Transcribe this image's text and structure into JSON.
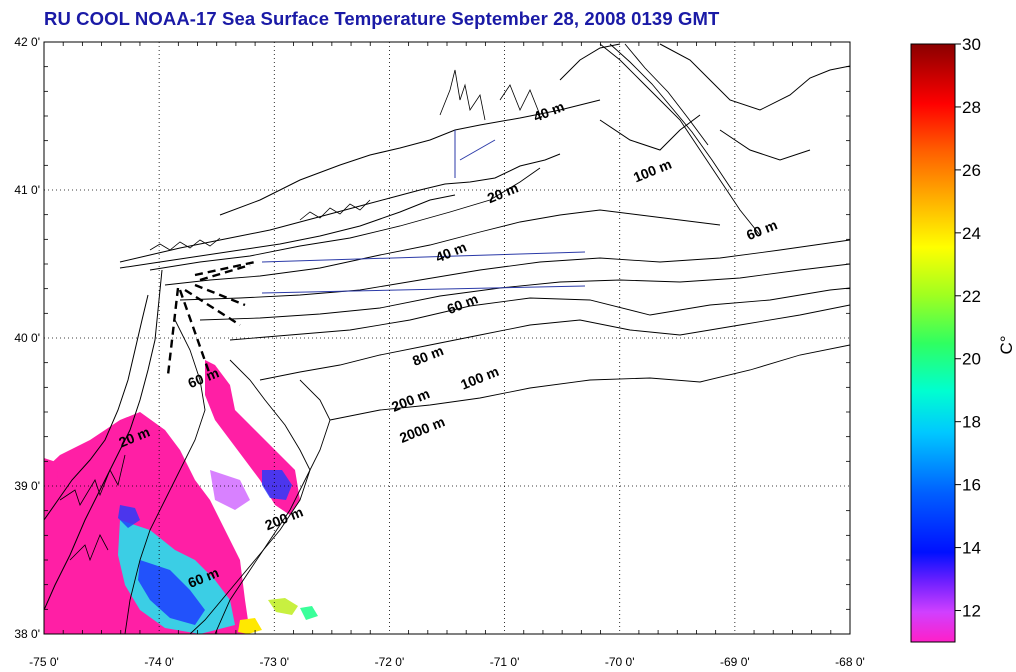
{
  "title": "RU COOL  NOAA-17 Sea Surface Temperature September 28, 2008 0139 GMT",
  "map": {
    "lon_range": [
      -75,
      -68
    ],
    "lat_range": [
      38,
      42
    ],
    "lon_ticks": [
      "-75 0'",
      "-74 0'",
      "-73 0'",
      "-72 0'",
      "-71 0'",
      "-70 0'",
      "-69 0'",
      "-68 0'"
    ],
    "lat_ticks": [
      "42 0'",
      "41 0'",
      "40 0'",
      "39 0'",
      "38 0'"
    ],
    "grid": "dotted"
  },
  "contour_labels": [
    {
      "text": "20 m",
      "lon": -71.0,
      "lat": 40.95
    },
    {
      "text": "40 m",
      "lon": -71.45,
      "lat": 40.55
    },
    {
      "text": "40 m",
      "lon": -70.6,
      "lat": 41.5
    },
    {
      "text": "100 m",
      "lon": -69.7,
      "lat": 41.1
    },
    {
      "text": "60 m",
      "lon": -71.35,
      "lat": 40.2
    },
    {
      "text": "60 m",
      "lon": -68.75,
      "lat": 40.7
    },
    {
      "text": "80 m",
      "lon": -71.65,
      "lat": 39.85
    },
    {
      "text": "100 m",
      "lon": -71.2,
      "lat": 39.7
    },
    {
      "text": "200 m",
      "lon": -71.8,
      "lat": 39.55
    },
    {
      "text": "60 m",
      "lon": -73.6,
      "lat": 39.7
    },
    {
      "text": "2000 m",
      "lon": -71.7,
      "lat": 39.35
    },
    {
      "text": "20 m",
      "lon": -74.2,
      "lat": 39.3
    },
    {
      "text": "200 m",
      "lon": -72.9,
      "lat": 38.75
    },
    {
      "text": "60 m",
      "lon": -73.6,
      "lat": 38.35
    }
  ],
  "colorbar": {
    "min": 11,
    "max": 30,
    "ticks": [
      "30",
      "28",
      "26",
      "24",
      "22",
      "20",
      "18",
      "16",
      "14",
      "12"
    ],
    "unit": "C°"
  },
  "colors": {
    "title": "#1a1aa6",
    "coast": "#000000",
    "tracks": "#2b3aa8",
    "sst_warm": "#ff1fa5",
    "sst_mid": "#00e5ff",
    "sst_cool": "#1e3cff"
  }
}
